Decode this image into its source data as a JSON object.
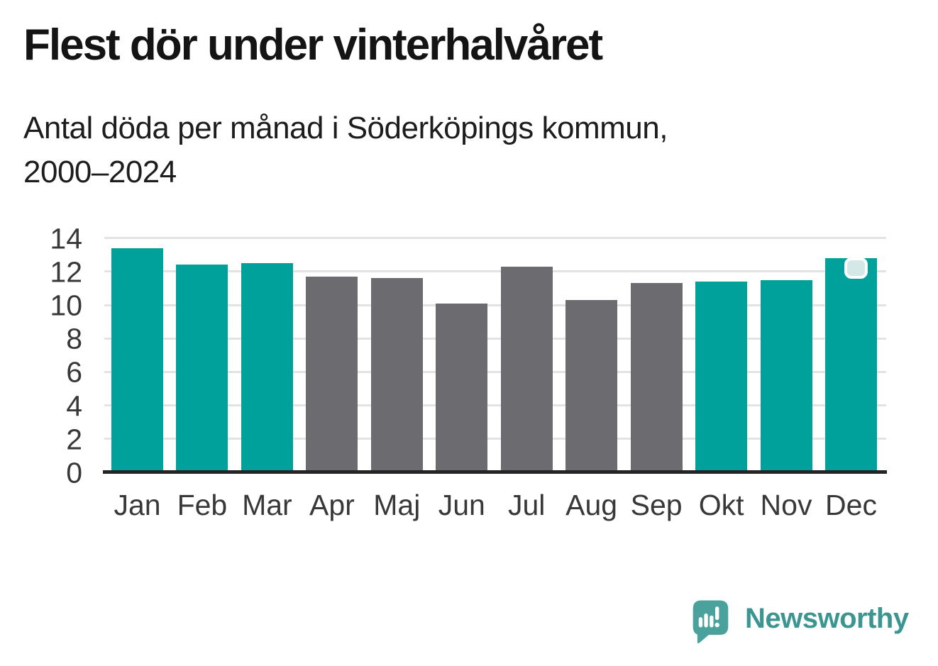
{
  "chart_data": {
    "type": "bar",
    "title": "Flest dör under vinterhalvåret",
    "subtitle": "Antal döda per månad i Söderköpings kommun,\n2000–2024",
    "categories": [
      "Jan",
      "Feb",
      "Mar",
      "Apr",
      "Maj",
      "Jun",
      "Jul",
      "Aug",
      "Sep",
      "Okt",
      "Nov",
      "Dec"
    ],
    "values": [
      13.4,
      12.4,
      12.5,
      11.7,
      11.6,
      10.1,
      12.3,
      10.3,
      11.3,
      11.4,
      11.5,
      12.8
    ],
    "bar_colors": [
      "teal",
      "teal",
      "teal",
      "gray",
      "gray",
      "gray",
      "gray",
      "gray",
      "gray",
      "teal",
      "teal",
      "teal"
    ],
    "palette": {
      "teal": "#00A19A",
      "gray": "#6C6C70"
    },
    "y_ticks": [
      0,
      2,
      4,
      6,
      8,
      10,
      12,
      14
    ],
    "ylim": [
      0,
      14
    ],
    "xlabel": "",
    "ylabel": "",
    "grid": "horizontal-light",
    "gridline_color": "#E3E3E3",
    "axis_line_color": "#242424",
    "legend": "none",
    "highlight": {
      "category": "Dec",
      "marker": "light-rounded-badge",
      "badge_color": "#D4E9E7"
    }
  },
  "footer": {
    "brand": "Newsworthy",
    "brand_color": "#3B9692",
    "icon": "speech-bubble-bar-chart-exclamation-icon"
  }
}
